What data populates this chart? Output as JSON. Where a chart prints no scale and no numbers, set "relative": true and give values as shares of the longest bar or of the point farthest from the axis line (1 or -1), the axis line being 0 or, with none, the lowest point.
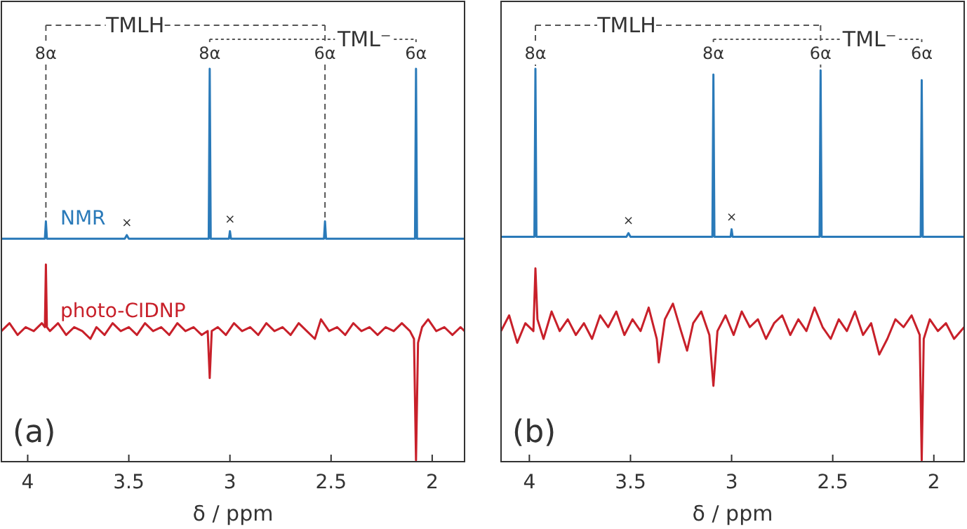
{
  "chart_data": [
    {
      "type": "line",
      "relative": true,
      "xlabel": "δ / ppm",
      "xlim": [
        4.13,
        1.84
      ],
      "xticks": [
        4,
        3.5,
        3,
        2.5,
        2
      ],
      "tick_labels": "x",
      "marker": "none",
      "line_style": "solid",
      "series": [
        {
          "name": "NMR",
          "color": "#2a7ab9",
          "x": [
            4.13,
            3.915,
            3.91,
            3.905,
            3.52,
            3.51,
            3.5,
            3.105,
            3.1,
            3.095,
            3.005,
            3.0,
            2.995,
            2.535,
            2.53,
            2.525,
            2.085,
            2.08,
            2.075,
            1.84
          ],
          "values": [
            0.566,
            0.566,
            0.61,
            0.566,
            0.566,
            0.575,
            0.566,
            0.566,
            1.0,
            0.566,
            0.566,
            0.585,
            0.566,
            0.566,
            0.61,
            0.566,
            0.566,
            1.0,
            0.566,
            0.566
          ]
        },
        {
          "name": "photo-CIDNP",
          "color": "#c8202a",
          "x": [
            4.13,
            4.09,
            4.05,
            4.01,
            3.97,
            3.93,
            3.915,
            3.91,
            3.905,
            3.89,
            3.85,
            3.81,
            3.77,
            3.73,
            3.69,
            3.66,
            3.62,
            3.58,
            3.54,
            3.5,
            3.46,
            3.42,
            3.38,
            3.34,
            3.3,
            3.26,
            3.22,
            3.18,
            3.14,
            3.11,
            3.1,
            3.09,
            3.06,
            3.02,
            2.98,
            2.94,
            2.9,
            2.86,
            2.82,
            2.78,
            2.74,
            2.7,
            2.66,
            2.62,
            2.58,
            2.55,
            2.51,
            2.47,
            2.43,
            2.39,
            2.35,
            2.31,
            2.27,
            2.23,
            2.19,
            2.15,
            2.11,
            2.09,
            2.08,
            2.07,
            2.05,
            2.02,
            1.98,
            1.94,
            1.9,
            1.86,
            1.84
          ],
          "values": [
            0.33,
            0.35,
            0.32,
            0.34,
            0.33,
            0.35,
            0.34,
            0.5,
            0.34,
            0.33,
            0.35,
            0.32,
            0.34,
            0.33,
            0.31,
            0.34,
            0.32,
            0.35,
            0.33,
            0.34,
            0.32,
            0.35,
            0.33,
            0.34,
            0.32,
            0.35,
            0.33,
            0.34,
            0.32,
            0.33,
            0.21,
            0.33,
            0.34,
            0.32,
            0.35,
            0.33,
            0.34,
            0.32,
            0.35,
            0.33,
            0.34,
            0.32,
            0.35,
            0.33,
            0.31,
            0.36,
            0.33,
            0.34,
            0.32,
            0.35,
            0.33,
            0.34,
            0.32,
            0.34,
            0.33,
            0.35,
            0.33,
            0.31,
            0,
            0.3,
            0.34,
            0.36,
            0.33,
            0.34,
            0.32,
            0.34,
            0.33
          ]
        }
      ],
      "annotations": [
        "(a)",
        "TMLH",
        "TML⁻",
        "8α",
        "×",
        "8α",
        "×",
        "6α",
        "6α"
      ]
    },
    {
      "type": "line",
      "relative": true,
      "xlabel": "δ / ppm",
      "xlim": [
        4.14,
        1.85
      ],
      "xticks": [
        4,
        3.5,
        3,
        2.5,
        2
      ],
      "tick_labels": "x",
      "marker": "none",
      "line_style": "solid",
      "series": [
        {
          "color": "#2a7ab9",
          "x": [
            4.14,
            3.975,
            3.97,
            3.965,
            3.52,
            3.51,
            3.5,
            3.095,
            3.09,
            3.085,
            3.005,
            3.0,
            2.995,
            2.565,
            2.56,
            2.555,
            2.065,
            2.06,
            2.055,
            1.85
          ],
          "values": [
            0.571,
            0.571,
            1.0,
            0.571,
            0.571,
            0.58,
            0.571,
            0.571,
            0.985,
            0.571,
            0.571,
            0.59,
            0.571,
            0.571,
            0.996,
            0.571,
            0.571,
            0.971,
            0.571,
            0.571
          ]
        },
        {
          "color": "#c8202a",
          "x": [
            4.14,
            4.1,
            4.06,
            4.02,
            3.98,
            3.97,
            3.96,
            3.93,
            3.89,
            3.85,
            3.81,
            3.77,
            3.73,
            3.69,
            3.65,
            3.61,
            3.57,
            3.53,
            3.49,
            3.45,
            3.41,
            3.37,
            3.36,
            3.33,
            3.29,
            3.25,
            3.22,
            3.19,
            3.15,
            3.11,
            3.09,
            3.07,
            3.03,
            2.99,
            2.95,
            2.91,
            2.87,
            2.83,
            2.79,
            2.75,
            2.71,
            2.67,
            2.63,
            2.59,
            2.55,
            2.51,
            2.47,
            2.43,
            2.39,
            2.35,
            2.31,
            2.27,
            2.23,
            2.19,
            2.15,
            2.11,
            2.07,
            2.06,
            2.05,
            2.02,
            1.98,
            1.94,
            1.9,
            1.85
          ],
          "values": [
            0.33,
            0.37,
            0.3,
            0.35,
            0.33,
            0.49,
            0.36,
            0.31,
            0.38,
            0.33,
            0.36,
            0.32,
            0.35,
            0.31,
            0.37,
            0.34,
            0.38,
            0.32,
            0.36,
            0.33,
            0.39,
            0.31,
            0.25,
            0.36,
            0.4,
            0.33,
            0.28,
            0.35,
            0.38,
            0.32,
            0.19,
            0.33,
            0.37,
            0.32,
            0.38,
            0.34,
            0.36,
            0.31,
            0.35,
            0.37,
            0.32,
            0.36,
            0.33,
            0.39,
            0.34,
            0.31,
            0.36,
            0.33,
            0.38,
            0.32,
            0.35,
            0.27,
            0.31,
            0.36,
            0.34,
            0.37,
            0.32,
            0,
            0.31,
            0.36,
            0.33,
            0.35,
            0.31,
            0.34
          ]
        }
      ],
      "annotations": [
        "(b)",
        "TMLH",
        "TML⁻",
        "8α",
        "×",
        "8α",
        "×",
        "6α",
        "6α"
      ]
    }
  ]
}
